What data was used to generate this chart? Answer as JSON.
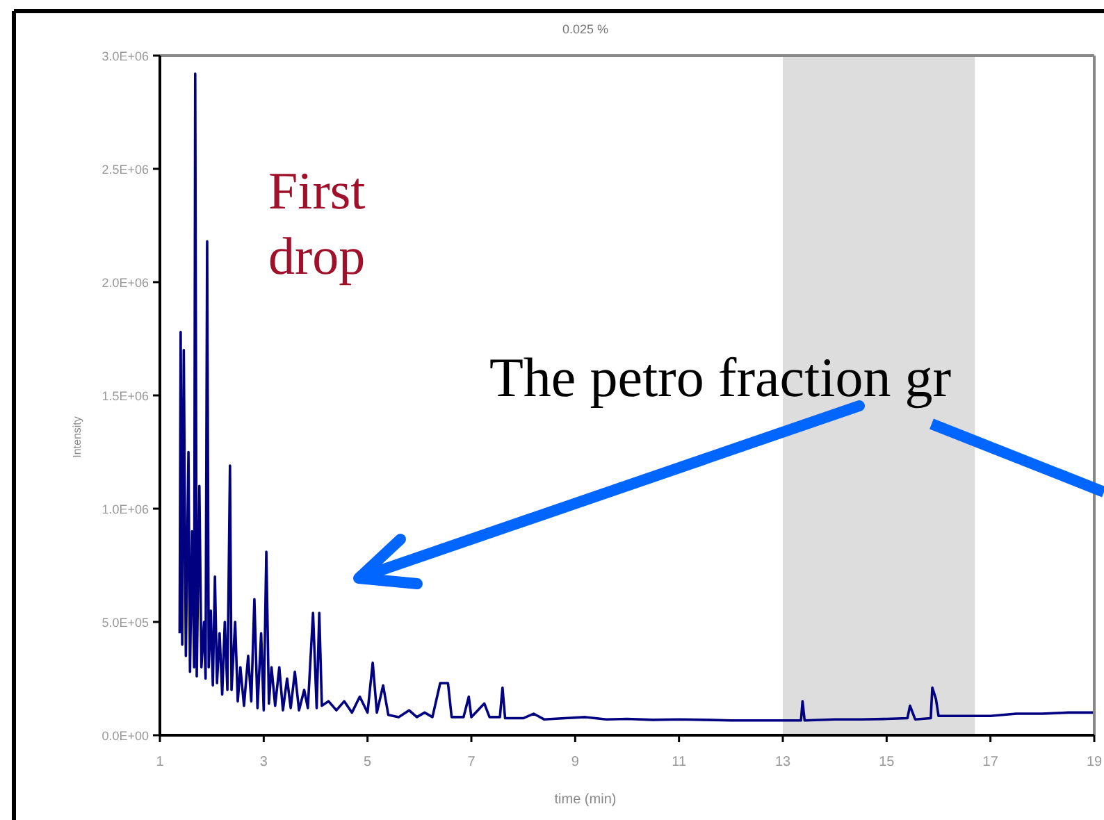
{
  "chart_data": {
    "type": "line",
    "title": "0.025 %",
    "xlabel": "time (min)",
    "ylabel": "Intensity",
    "annotations": [
      "First drop",
      "The petro fraction gr"
    ],
    "xlim": [
      1,
      19
    ],
    "xticks": [
      1,
      3,
      5,
      7,
      9,
      11,
      13,
      15,
      17,
      19
    ],
    "ylim": [
      0,
      3000000
    ],
    "yticks": [
      {
        "value": 0,
        "label": "0.0E+00"
      },
      {
        "value": 500000,
        "label": "5.0E+05"
      },
      {
        "value": 1000000,
        "label": "1.0E+06"
      },
      {
        "value": 1500000,
        "label": "1.5E+06"
      },
      {
        "value": 2000000,
        "label": "2.0E+06"
      },
      {
        "value": 2500000,
        "label": "2.5E+06"
      },
      {
        "value": 3000000,
        "label": "3.0E+06"
      }
    ],
    "bands": [
      {
        "axis": "x",
        "from": 13,
        "to": 16.7,
        "color": "#dddddd"
      }
    ],
    "grid": false,
    "marker": "none",
    "line_style": "solid",
    "series": [
      {
        "color": "#000080",
        "x": [
          1.38,
          1.4,
          1.43,
          1.46,
          1.5,
          1.55,
          1.58,
          1.62,
          1.66,
          1.68,
          1.71,
          1.76,
          1.8,
          1.85,
          1.88,
          1.91,
          1.94,
          1.98,
          2.02,
          2.06,
          2.1,
          2.15,
          2.2,
          2.25,
          2.3,
          2.35,
          2.38,
          2.45,
          2.5,
          2.55,
          2.62,
          2.7,
          2.76,
          2.82,
          2.88,
          2.95,
          3.0,
          3.05,
          3.1,
          3.15,
          3.22,
          3.3,
          3.37,
          3.45,
          3.52,
          3.6,
          3.68,
          3.78,
          3.85,
          3.95,
          4.02,
          4.07,
          4.12,
          4.25,
          4.4,
          4.55,
          4.7,
          4.85,
          5.0,
          5.1,
          5.18,
          5.3,
          5.4,
          5.6,
          5.8,
          5.95,
          6.1,
          6.25,
          6.4,
          6.55,
          6.62,
          6.85,
          6.95,
          7.0,
          7.25,
          7.35,
          7.55,
          7.6,
          7.65,
          8.0,
          8.2,
          8.4,
          8.8,
          9.2,
          9.6,
          10.0,
          10.5,
          11.0,
          11.5,
          12.0,
          12.5,
          13.0,
          13.35,
          13.38,
          13.42,
          14.0,
          14.5,
          15.0,
          15.4,
          15.45,
          15.55,
          15.85,
          15.88,
          15.95,
          16.0,
          16.5,
          17.0,
          17.5,
          18.0,
          18.5,
          19.0
        ],
        "values": [
          450000,
          1780000,
          400000,
          1700000,
          350000,
          1250000,
          280000,
          900000,
          300000,
          2920000,
          260000,
          1100000,
          300000,
          500000,
          250000,
          2180000,
          300000,
          550000,
          220000,
          700000,
          230000,
          450000,
          180000,
          500000,
          200000,
          1190000,
          200000,
          500000,
          150000,
          300000,
          130000,
          350000,
          150000,
          600000,
          120000,
          450000,
          110000,
          810000,
          140000,
          300000,
          130000,
          300000,
          110000,
          250000,
          120000,
          280000,
          110000,
          200000,
          120000,
          540000,
          120000,
          540000,
          130000,
          150000,
          110000,
          150000,
          100000,
          170000,
          100000,
          320000,
          100000,
          220000,
          90000,
          80000,
          110000,
          80000,
          100000,
          80000,
          230000,
          230000,
          80000,
          80000,
          170000,
          80000,
          140000,
          80000,
          80000,
          210000,
          75000,
          75000,
          95000,
          70000,
          75000,
          80000,
          70000,
          72000,
          68000,
          70000,
          68000,
          65000,
          65000,
          65000,
          65000,
          150000,
          65000,
          70000,
          70000,
          72000,
          75000,
          130000,
          70000,
          75000,
          210000,
          160000,
          85000,
          85000,
          85000,
          95000,
          95000,
          100000,
          100000
        ]
      }
    ]
  }
}
